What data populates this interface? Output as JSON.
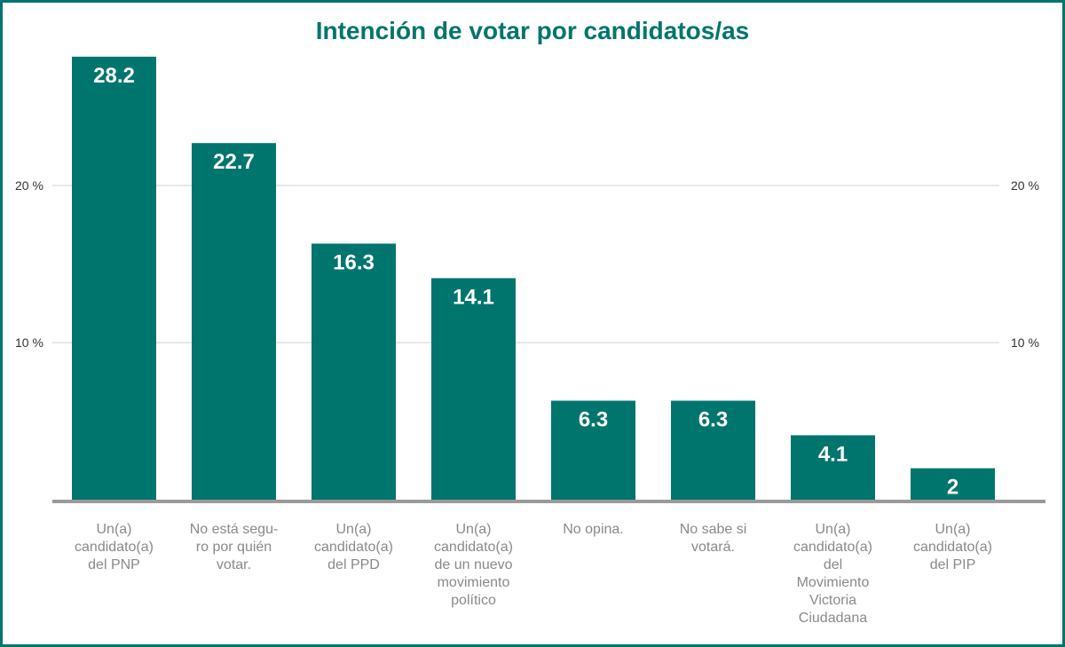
{
  "chart_data": {
    "type": "bar",
    "title": "Intención de votar por candidatos/as",
    "categories": [
      "Un(a) candidato(a) del PNP",
      "No está seguro por quién votar.",
      "Un(a) candidato(a) del PPD",
      "Un(a) candidato(a) de un nuevo movimiento político",
      "No opina.",
      "No sabe si votará.",
      "Un(a) candidato(a) del Movimiento Victoria Ciudadana",
      "Un(a) candidato(a) del PIP"
    ],
    "category_lines": [
      [
        "Un(a)",
        "candidato(a)",
        "del PNP"
      ],
      [
        "No está segu-",
        "ro por quién",
        "votar."
      ],
      [
        "Un(a)",
        "candidato(a)",
        "del PPD"
      ],
      [
        "Un(a)",
        "candidato(a)",
        "de un nuevo",
        "movimiento",
        "político"
      ],
      [
        "No opina."
      ],
      [
        "No sabe si",
        "votará."
      ],
      [
        "Un(a)",
        "candidato(a)",
        "del",
        "Movimiento",
        "Victoria",
        "Ciudadana"
      ],
      [
        "Un(a)",
        "candidato(a)",
        "del PIP"
      ]
    ],
    "values": [
      28.2,
      22.7,
      16.3,
      14.1,
      6.3,
      6.3,
      4.1,
      2
    ],
    "value_labels": [
      "28.2",
      "22.7",
      "16.3",
      "14.1",
      "6.3",
      "6.3",
      "4.1",
      "2"
    ],
    "yticks": [
      10,
      20
    ],
    "ytick_labels": [
      "10 %",
      "20 %"
    ],
    "ylim": [
      0,
      30
    ],
    "grid": true,
    "colors": {
      "bar": "#00756d",
      "border": "#00756d",
      "gridline": "#d0d0d0",
      "baseline": "#9a9a9a",
      "category_text": "#8a8a8a"
    }
  }
}
